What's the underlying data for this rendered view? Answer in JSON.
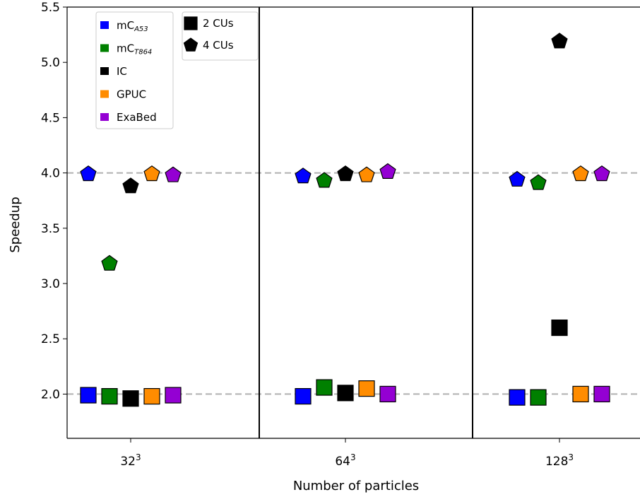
{
  "chart_data": {
    "type": "scatter",
    "xlabel": "Number of particles",
    "ylabel": "Speedup",
    "categories": [
      {
        "base": "32",
        "exp": "3"
      },
      {
        "base": "64",
        "exp": "3"
      },
      {
        "base": "128",
        "exp": "3"
      }
    ],
    "ylim": [
      1.6,
      5.5
    ],
    "yticks": [
      "2.0",
      "2.5",
      "3.0",
      "3.5",
      "4.0",
      "4.5",
      "5.0",
      "5.5"
    ],
    "reference_lines": [
      2.0,
      4.0
    ],
    "legend_series": [
      {
        "main": "mC",
        "sub": "A53",
        "color": "#0000ff"
      },
      {
        "main": "mC",
        "sub": "T864",
        "color": "#008000"
      },
      {
        "main": "IC",
        "sub": "",
        "color": "#000000"
      },
      {
        "main": "GPUC",
        "sub": "",
        "color": "#ff8c00"
      },
      {
        "main": "ExaBed",
        "sub": "",
        "color": "#9400d3"
      }
    ],
    "legend_markers": [
      {
        "label": "2 CUs",
        "marker": "square"
      },
      {
        "label": "4 CUs",
        "marker": "pentagon"
      }
    ],
    "series": [
      {
        "name": "mCA53",
        "color": "#0000ff",
        "cus2": [
          1.99,
          1.98,
          1.97
        ],
        "cus4": [
          3.99,
          3.97,
          3.94
        ]
      },
      {
        "name": "mCT864",
        "color": "#008000",
        "cus2": [
          1.98,
          2.06,
          1.97
        ],
        "cus4": [
          3.18,
          3.93,
          3.91
        ]
      },
      {
        "name": "IC",
        "color": "#000000",
        "cus2": [
          1.96,
          2.01,
          2.6
        ],
        "cus4": [
          3.88,
          3.99,
          5.19
        ]
      },
      {
        "name": "GPUC",
        "color": "#ff8c00",
        "cus2": [
          1.98,
          2.05,
          2.0
        ],
        "cus4": [
          3.99,
          3.98,
          3.99
        ]
      },
      {
        "name": "ExaBed",
        "color": "#9400d3",
        "cus2": [
          1.99,
          2.0,
          2.0
        ],
        "cus4": [
          3.98,
          4.01,
          3.99
        ]
      }
    ]
  }
}
